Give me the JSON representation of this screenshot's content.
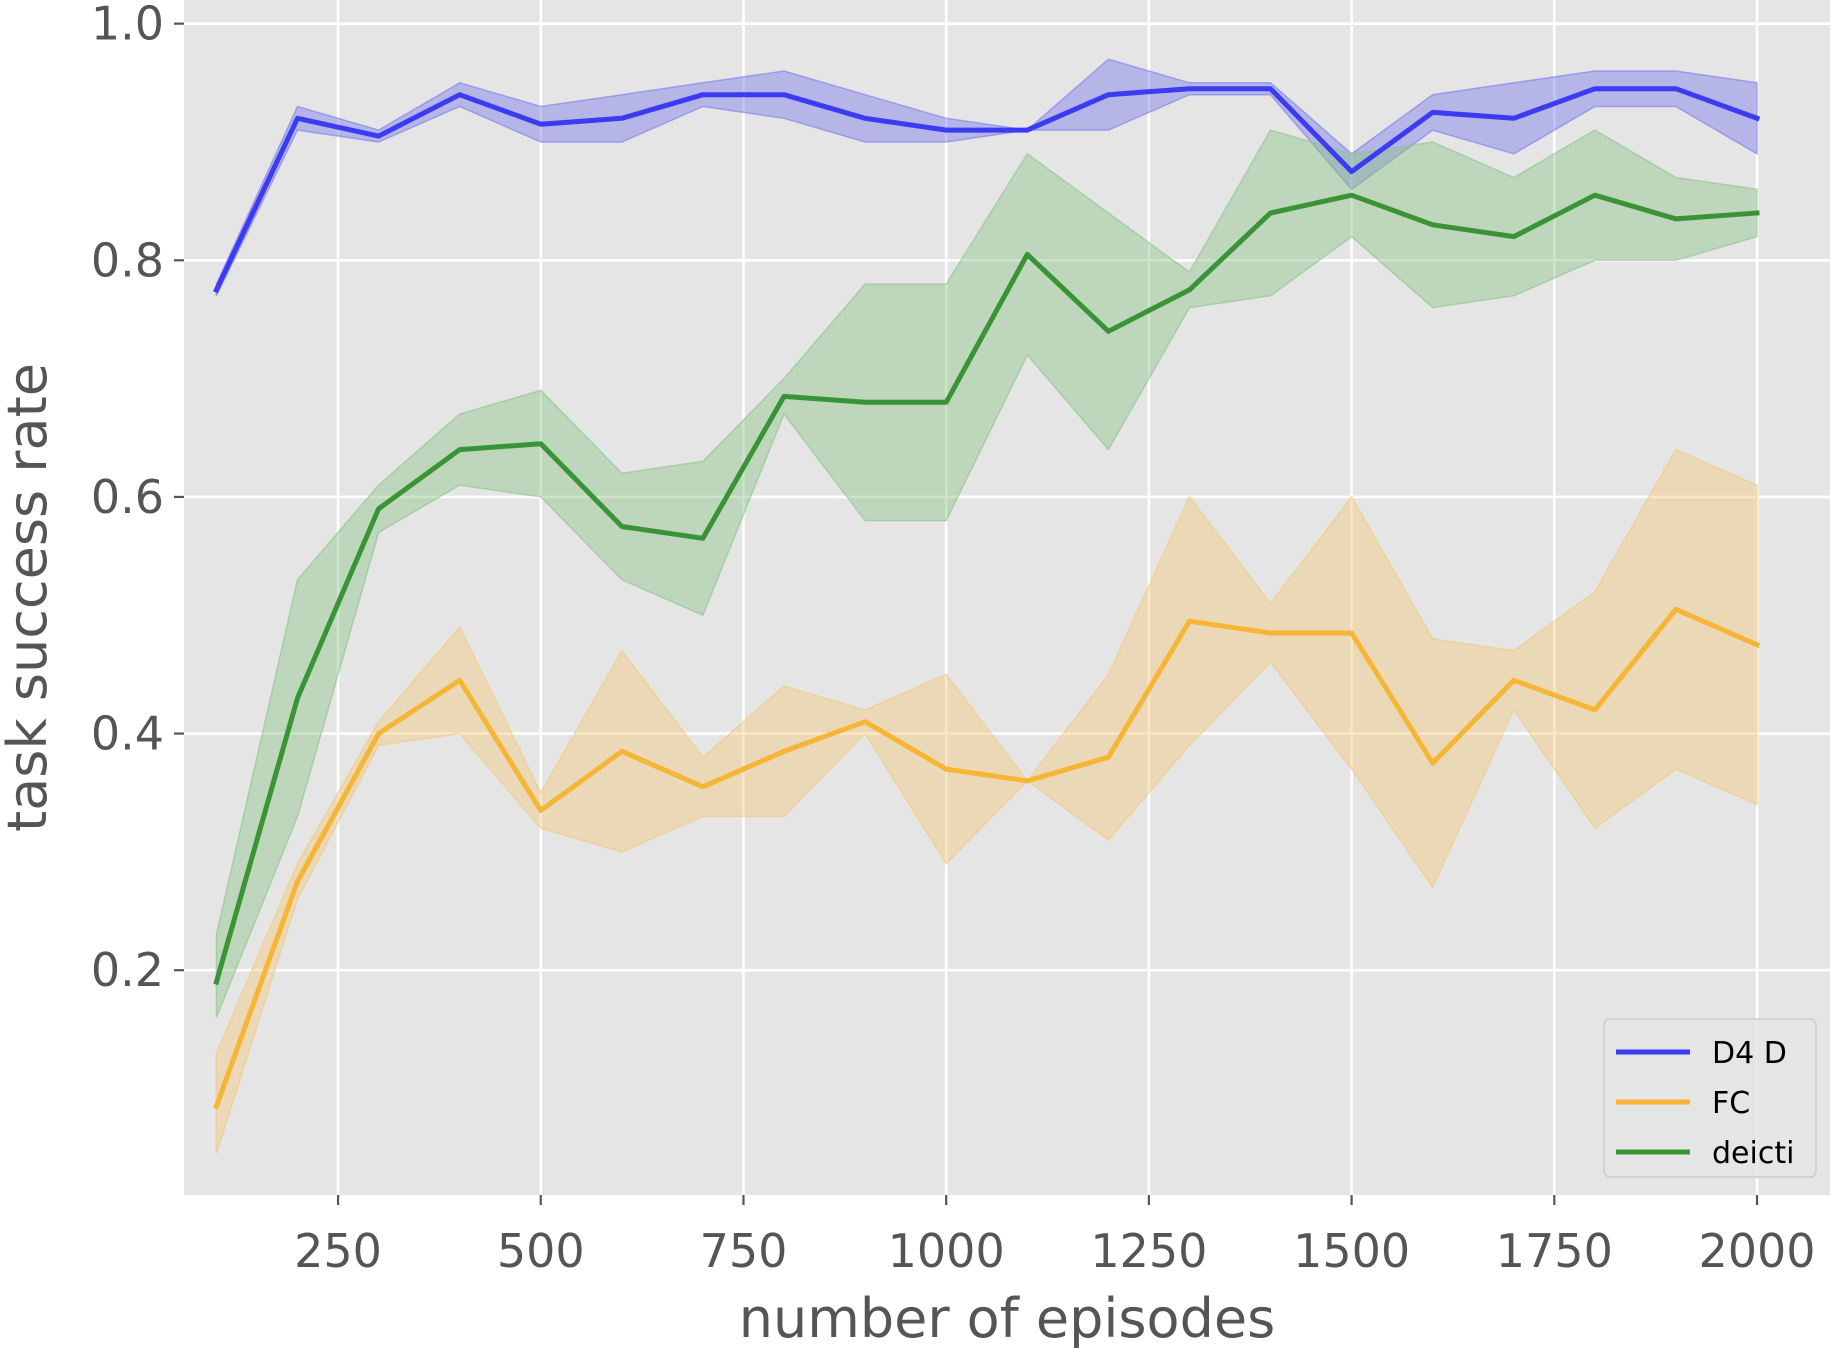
{
  "chart_data": {
    "type": "line",
    "xlabel": "number of episodes",
    "ylabel": "task success rate",
    "xlim": [
      60,
      2090
    ],
    "ylim": [
      0.01,
      1.02
    ],
    "x_ticks": [
      250,
      500,
      750,
      1000,
      1250,
      1500,
      1750,
      2000
    ],
    "x_tick_labels": [
      "250",
      "500",
      "750",
      "1000",
      "1250",
      "1500",
      "1750",
      "2000"
    ],
    "y_ticks": [
      0.2,
      0.4,
      0.6,
      0.8,
      1.0
    ],
    "y_tick_labels": [
      "0.2",
      "0.4",
      "0.6",
      "0.8",
      "1.0"
    ],
    "grid": true,
    "legend_position": "bottom-right",
    "x": [
      100,
      200,
      300,
      400,
      500,
      600,
      700,
      800,
      900,
      1000,
      1100,
      1200,
      1300,
      1400,
      1500,
      1600,
      1700,
      1800,
      1900,
      2000
    ],
    "series": [
      {
        "name": "D4 D",
        "color": "#3b3bf2",
        "band_color": "#7b7bec",
        "values": [
          0.775,
          0.92,
          0.905,
          0.94,
          0.915,
          0.92,
          0.94,
          0.94,
          0.92,
          0.91,
          0.91,
          0.94,
          0.945,
          0.945,
          0.875,
          0.925,
          0.92,
          0.945,
          0.945,
          0.92
        ],
        "lower": [
          0.77,
          0.91,
          0.9,
          0.93,
          0.9,
          0.9,
          0.93,
          0.92,
          0.9,
          0.9,
          0.91,
          0.91,
          0.94,
          0.94,
          0.86,
          0.91,
          0.89,
          0.93,
          0.93,
          0.89
        ],
        "upper": [
          0.78,
          0.93,
          0.91,
          0.95,
          0.93,
          0.94,
          0.95,
          0.96,
          0.94,
          0.92,
          0.91,
          0.97,
          0.95,
          0.95,
          0.89,
          0.94,
          0.95,
          0.96,
          0.96,
          0.95
        ]
      },
      {
        "name": "FC",
        "color": "#f7b535",
        "band_color": "#f2c87c",
        "values": [
          0.085,
          0.275,
          0.4,
          0.445,
          0.335,
          0.385,
          0.355,
          0.385,
          0.41,
          0.37,
          0.36,
          0.38,
          0.495,
          0.485,
          0.485,
          0.375,
          0.445,
          0.42,
          0.505,
          0.475
        ],
        "lower": [
          0.045,
          0.26,
          0.39,
          0.4,
          0.32,
          0.3,
          0.33,
          0.33,
          0.4,
          0.29,
          0.36,
          0.31,
          0.39,
          0.46,
          0.37,
          0.27,
          0.42,
          0.32,
          0.37,
          0.34
        ],
        "upper": [
          0.13,
          0.29,
          0.41,
          0.49,
          0.35,
          0.47,
          0.38,
          0.44,
          0.42,
          0.45,
          0.36,
          0.45,
          0.6,
          0.51,
          0.6,
          0.48,
          0.47,
          0.52,
          0.64,
          0.61
        ]
      },
      {
        "name": "deicti",
        "color": "#3a9436",
        "band_color": "#8cc48a",
        "values": [
          0.19,
          0.43,
          0.59,
          0.64,
          0.645,
          0.575,
          0.565,
          0.685,
          0.68,
          0.68,
          0.805,
          0.74,
          0.775,
          0.84,
          0.855,
          0.83,
          0.82,
          0.855,
          0.835,
          0.84
        ],
        "lower": [
          0.16,
          0.33,
          0.57,
          0.61,
          0.6,
          0.53,
          0.5,
          0.67,
          0.58,
          0.58,
          0.72,
          0.64,
          0.76,
          0.77,
          0.82,
          0.76,
          0.77,
          0.8,
          0.8,
          0.82
        ],
        "upper": [
          0.23,
          0.53,
          0.61,
          0.67,
          0.69,
          0.62,
          0.63,
          0.7,
          0.78,
          0.78,
          0.89,
          0.84,
          0.79,
          0.91,
          0.89,
          0.9,
          0.87,
          0.91,
          0.87,
          0.86
        ]
      }
    ]
  }
}
